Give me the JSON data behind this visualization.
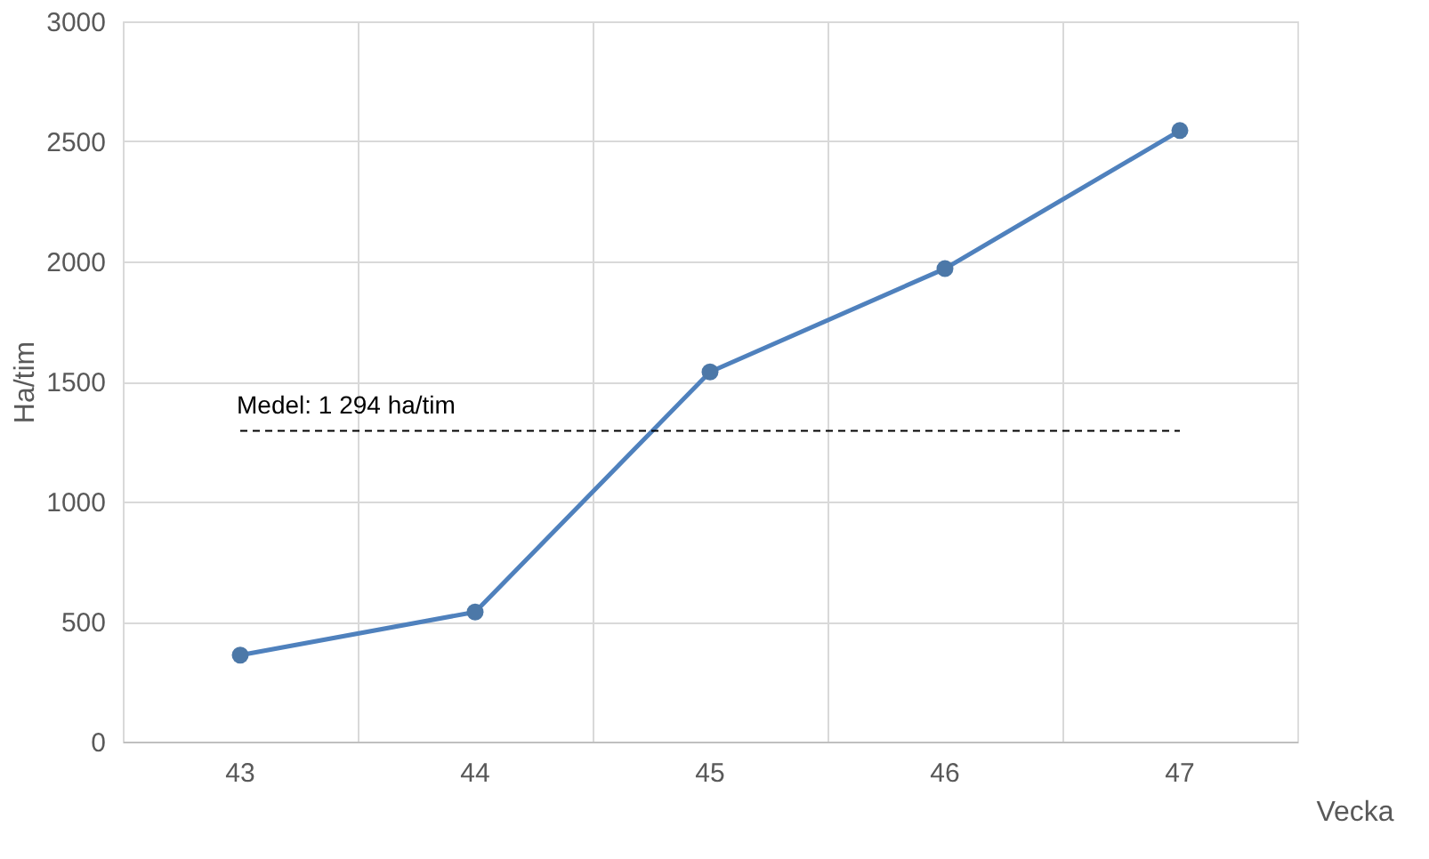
{
  "chart_data": {
    "type": "line",
    "xlabel": "Vecka",
    "ylabel": "Ha/tim",
    "categories": [
      "43",
      "44",
      "45",
      "46",
      "47"
    ],
    "series": [
      {
        "color": "#4f81bd",
        "values": [
          360,
          540,
          1540,
          1970,
          2545
        ]
      }
    ],
    "ylim": [
      0,
      3000
    ],
    "yticks": [
      0,
      500,
      1000,
      1500,
      2000,
      2500,
      3000
    ],
    "grid": true,
    "marker": "circle",
    "line_style": "solid",
    "ref_lines": [
      {
        "axis": "y",
        "value": 1294,
        "label": "Medel: 1 294 ha/tim",
        "color": "#000000",
        "line_style": "dashed"
      }
    ]
  }
}
